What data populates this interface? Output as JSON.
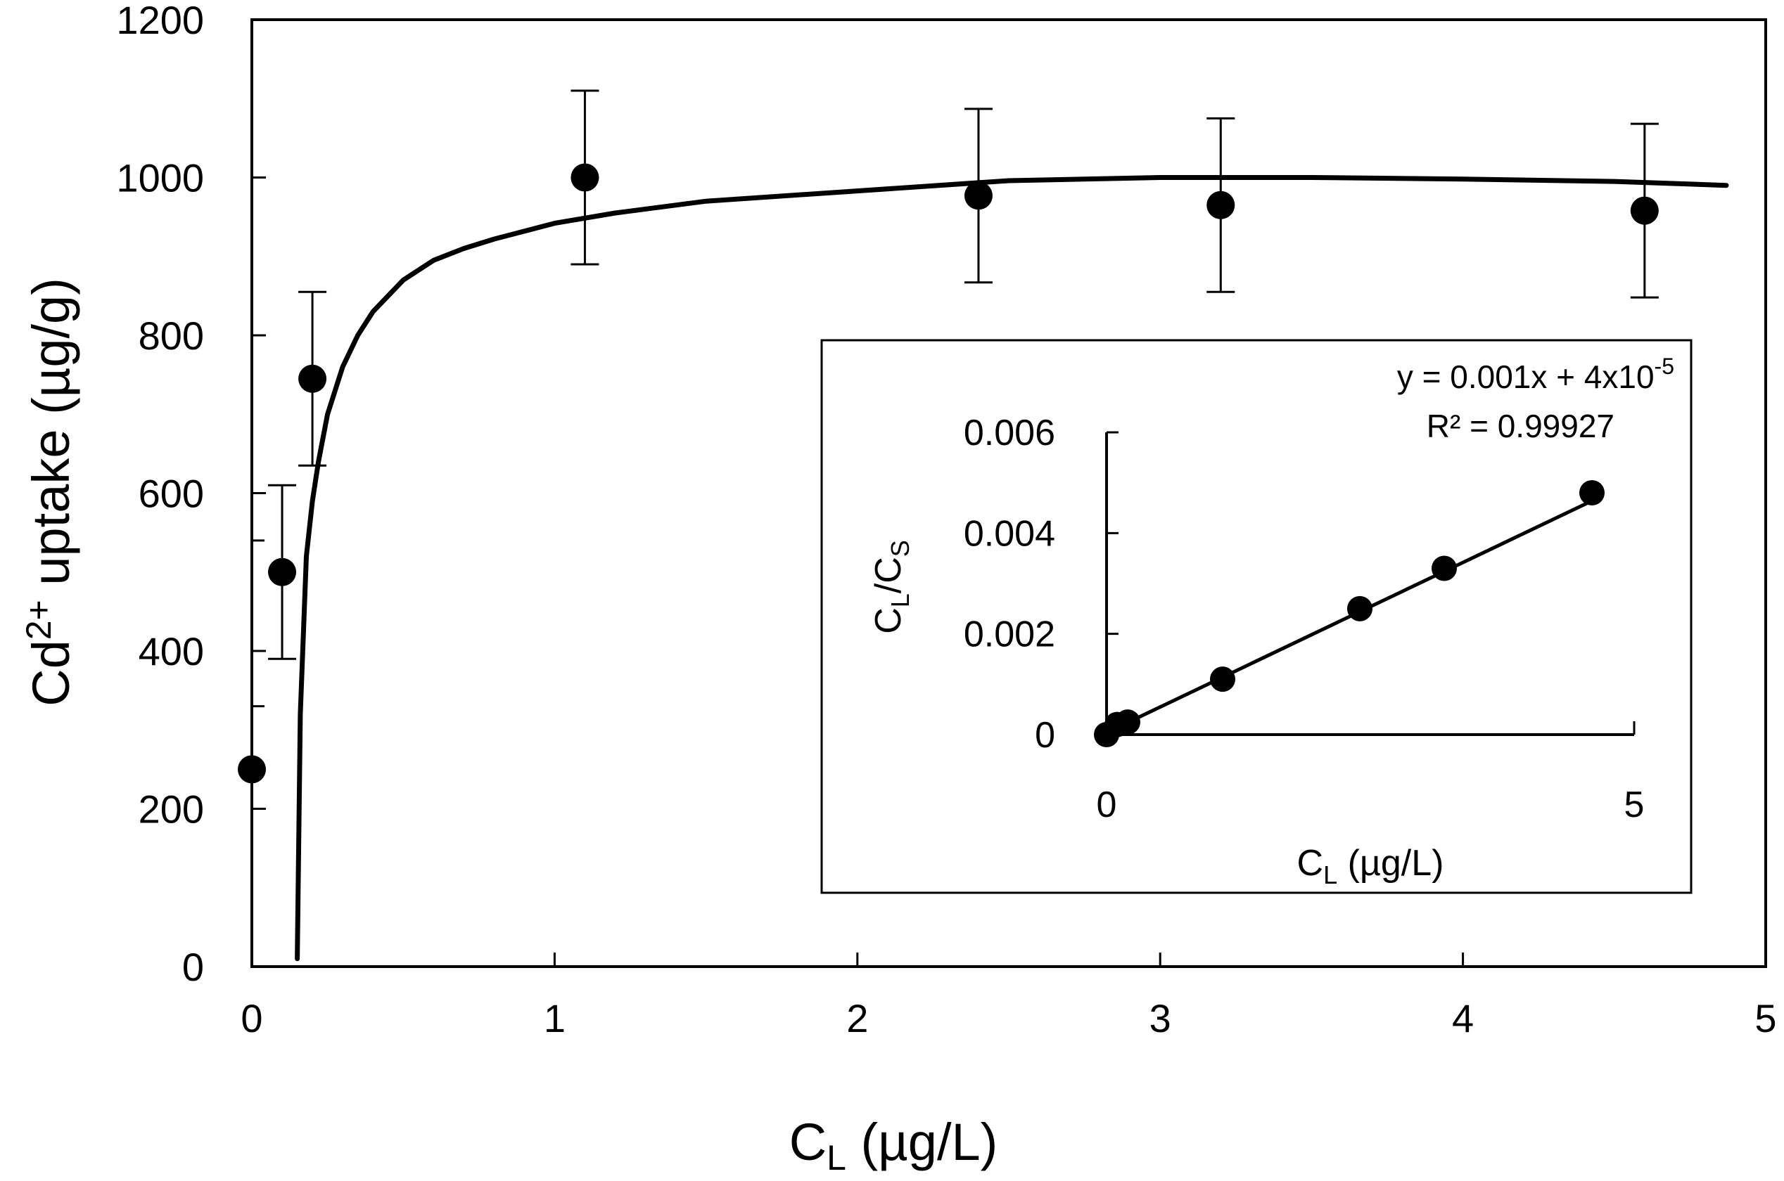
{
  "chart_data": [
    {
      "type": "scatter",
      "xlabel": {
        "base": "C",
        "sub": "L",
        "rest": " (µg/L)"
      },
      "ylabel": {
        "base": "Cd",
        "sup": "2+",
        "rest": " uptake (µg/g)"
      },
      "xlim": [
        0,
        5
      ],
      "ylim": [
        0,
        1200
      ],
      "xticks": [
        "0",
        "1",
        "2",
        "3",
        "4",
        "5"
      ],
      "yticks": [
        "0",
        "200",
        "400",
        "600",
        "800",
        "1000",
        "1200"
      ],
      "grid": false,
      "legend": "none",
      "series": [
        {
          "kind": "points-with-error-bars",
          "x": [
            0,
            0.1,
            0.2,
            1.1,
            2.4,
            3.2,
            4.6
          ],
          "y": [
            250,
            500,
            745,
            1000,
            977,
            965,
            958
          ],
          "error": [
            null,
            110,
            110,
            110,
            110,
            110,
            110
          ]
        },
        {
          "kind": "fitted-curve",
          "x": [
            0.15,
            0.16,
            0.18,
            0.2,
            0.22,
            0.25,
            0.3,
            0.35,
            0.4,
            0.5,
            0.6,
            0.7,
            0.8,
            1.0,
            1.2,
            1.5,
            2.0,
            2.5,
            3.0,
            3.5,
            4.0,
            4.5,
            4.87
          ],
          "y": [
            10,
            320,
            520,
            590,
            640,
            700,
            760,
            800,
            830,
            870,
            895,
            910,
            922,
            942,
            955,
            970,
            983,
            996,
            1000,
            1000,
            998,
            995,
            990
          ]
        }
      ]
    },
    {
      "type": "scatter",
      "xlabel": {
        "base": "C",
        "sub": "L",
        "rest": " (µg/L)"
      },
      "ylabel": {
        "base": "C",
        "sub1": "L",
        "mid": "/C",
        "sub2": "S"
      },
      "xlim": [
        0,
        5
      ],
      "ylim": [
        0,
        0.006
      ],
      "xticks": [
        "0",
        "5"
      ],
      "yticks": [
        "0",
        "0.002",
        "0.004",
        "0.006"
      ],
      "grid": false,
      "equation": {
        "main": "y = 0.001x + 4x10",
        "sup": "-5"
      },
      "r_squared": "R² = 0.99927",
      "series": [
        {
          "kind": "points",
          "x": [
            0,
            0.1,
            0.2,
            1.1,
            2.4,
            3.2,
            4.6
          ],
          "y": [
            0,
            0.0002,
            0.00025,
            0.0011,
            0.0025,
            0.0033,
            0.0048
          ]
        },
        {
          "kind": "linear-fit",
          "slope": 0.001,
          "intercept": 4e-05,
          "x_range": [
            0,
            4.6
          ]
        }
      ]
    }
  ]
}
